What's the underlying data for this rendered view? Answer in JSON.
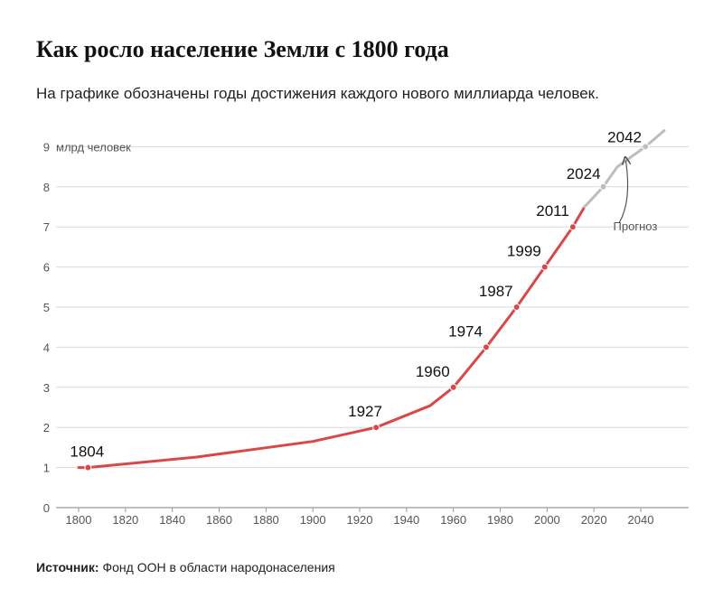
{
  "header": {
    "title": "Как росло население Земли с 1800 года",
    "subtitle": "На графике обозначены годы достижения каждого нового миллиарда человек."
  },
  "source": {
    "label": "Источник:",
    "text": "Фонд ООН в области народонаселения"
  },
  "colors": {
    "history": "#d94848",
    "forecast": "#bdbdbd",
    "grid": "#d9d9d9",
    "axis": "#999999"
  },
  "chart_data": {
    "type": "line",
    "title": "Как росло население Земли с 1800 года",
    "xlabel": "",
    "ylabel": "млрд человек",
    "xlim": [
      1795,
      2055
    ],
    "ylim": [
      0,
      9.5
    ],
    "x_ticks": [
      1800,
      1820,
      1840,
      1860,
      1880,
      1900,
      1920,
      1940,
      1960,
      1980,
      2000,
      2020,
      2040
    ],
    "y_ticks": [
      0,
      1,
      2,
      3,
      4,
      5,
      6,
      7,
      8,
      9
    ],
    "y_unit_label": "млрд человек",
    "grid": true,
    "series": [
      {
        "role": "history",
        "x": [
          1800,
          1804,
          1850,
          1900,
          1927,
          1950,
          1960,
          1974,
          1987,
          1999,
          2011,
          2016
        ],
        "y": [
          1.0,
          1.0,
          1.26,
          1.65,
          2.0,
          2.54,
          3.0,
          4.0,
          5.0,
          6.0,
          7.0,
          7.5
        ]
      },
      {
        "role": "forecast",
        "x": [
          2016,
          2024,
          2030,
          2042,
          2050
        ],
        "y": [
          7.5,
          8.0,
          8.5,
          9.0,
          9.4
        ]
      }
    ],
    "milestones": [
      {
        "year": 1804,
        "value": 1,
        "label": "1804"
      },
      {
        "year": 1927,
        "value": 2,
        "label": "1927"
      },
      {
        "year": 1960,
        "value": 3,
        "label": "1960"
      },
      {
        "year": 1974,
        "value": 4,
        "label": "1974"
      },
      {
        "year": 1987,
        "value": 5,
        "label": "1987"
      },
      {
        "year": 1999,
        "value": 6,
        "label": "1999"
      },
      {
        "year": 2011,
        "value": 7,
        "label": "2011"
      },
      {
        "year": 2024,
        "value": 8,
        "label": "2024",
        "forecast": true
      },
      {
        "year": 2042,
        "value": 9,
        "label": "2042",
        "forecast": true
      }
    ],
    "annotation": {
      "text": "Прогноз"
    }
  }
}
